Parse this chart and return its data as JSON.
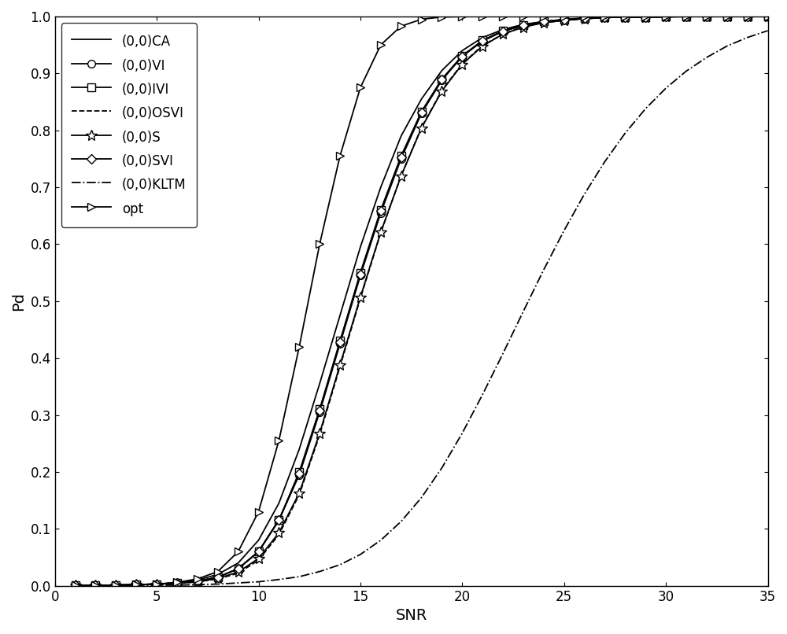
{
  "title": "",
  "xlabel": "SNR",
  "ylabel": "Pd",
  "xlim": [
    0,
    35
  ],
  "ylim": [
    0,
    1
  ],
  "xticks": [
    0,
    5,
    10,
    15,
    20,
    25,
    30,
    35
  ],
  "yticks": [
    0,
    0.1,
    0.2,
    0.3,
    0.4,
    0.5,
    0.6,
    0.7,
    0.8,
    0.9,
    1.0
  ],
  "snr": [
    1,
    2,
    3,
    4,
    5,
    6,
    7,
    8,
    9,
    10,
    11,
    12,
    13,
    14,
    15,
    16,
    17,
    18,
    19,
    20,
    21,
    22,
    23,
    24,
    25,
    26,
    27,
    28,
    29,
    30,
    31,
    32,
    33,
    34,
    35
  ],
  "CA": [
    0.001,
    0.001,
    0.001,
    0.002,
    0.003,
    0.005,
    0.01,
    0.02,
    0.04,
    0.08,
    0.145,
    0.24,
    0.355,
    0.475,
    0.595,
    0.7,
    0.79,
    0.855,
    0.905,
    0.94,
    0.963,
    0.977,
    0.986,
    0.991,
    0.995,
    0.997,
    0.998,
    0.999,
    0.999,
    0.9995,
    0.9997,
    0.9998,
    0.9999,
    0.9999,
    1.0
  ],
  "VI": [
    0.001,
    0.001,
    0.001,
    0.002,
    0.003,
    0.005,
    0.008,
    0.015,
    0.03,
    0.06,
    0.115,
    0.195,
    0.305,
    0.425,
    0.545,
    0.655,
    0.75,
    0.83,
    0.888,
    0.93,
    0.957,
    0.974,
    0.984,
    0.991,
    0.994,
    0.996,
    0.998,
    0.999,
    0.999,
    0.9995,
    0.9997,
    0.9998,
    0.9999,
    1.0,
    1.0
  ],
  "IVI": [
    0.001,
    0.001,
    0.001,
    0.002,
    0.003,
    0.005,
    0.008,
    0.015,
    0.03,
    0.06,
    0.115,
    0.2,
    0.31,
    0.43,
    0.55,
    0.66,
    0.755,
    0.833,
    0.89,
    0.931,
    0.958,
    0.975,
    0.985,
    0.991,
    0.994,
    0.997,
    0.998,
    0.999,
    0.999,
    0.9995,
    0.9997,
    0.9998,
    0.9999,
    1.0,
    1.0
  ],
  "OSVI": [
    0.001,
    0.001,
    0.001,
    0.002,
    0.003,
    0.004,
    0.007,
    0.012,
    0.022,
    0.045,
    0.09,
    0.16,
    0.265,
    0.385,
    0.505,
    0.62,
    0.72,
    0.805,
    0.87,
    0.917,
    0.949,
    0.969,
    0.982,
    0.989,
    0.993,
    0.996,
    0.998,
    0.999,
    0.999,
    0.9995,
    0.9997,
    0.9998,
    0.9999,
    1.0,
    1.0
  ],
  "S": [
    0.001,
    0.001,
    0.001,
    0.002,
    0.003,
    0.004,
    0.007,
    0.013,
    0.024,
    0.048,
    0.093,
    0.163,
    0.268,
    0.388,
    0.507,
    0.621,
    0.72,
    0.804,
    0.869,
    0.916,
    0.948,
    0.969,
    0.981,
    0.989,
    0.993,
    0.996,
    0.998,
    0.999,
    0.999,
    0.9995,
    0.9997,
    0.9998,
    1.0,
    1.0,
    1.0
  ],
  "SVI": [
    0.001,
    0.001,
    0.001,
    0.002,
    0.003,
    0.005,
    0.008,
    0.015,
    0.03,
    0.06,
    0.116,
    0.197,
    0.308,
    0.428,
    0.547,
    0.658,
    0.752,
    0.831,
    0.889,
    0.93,
    0.957,
    0.974,
    0.984,
    0.991,
    0.994,
    0.997,
    0.998,
    0.999,
    0.999,
    0.9995,
    0.9997,
    0.9998,
    0.9999,
    1.0,
    1.0
  ],
  "KLTM": [
    0.001,
    0.001,
    0.001,
    0.001,
    0.001,
    0.001,
    0.002,
    0.003,
    0.005,
    0.007,
    0.011,
    0.016,
    0.025,
    0.037,
    0.055,
    0.08,
    0.113,
    0.155,
    0.207,
    0.268,
    0.336,
    0.408,
    0.482,
    0.555,
    0.624,
    0.688,
    0.745,
    0.795,
    0.838,
    0.874,
    0.904,
    0.928,
    0.948,
    0.963,
    0.975
  ],
  "opt": [
    0.001,
    0.001,
    0.001,
    0.002,
    0.003,
    0.006,
    0.012,
    0.025,
    0.06,
    0.13,
    0.255,
    0.42,
    0.6,
    0.755,
    0.875,
    0.95,
    0.983,
    0.995,
    0.999,
    0.9997,
    0.9999,
    1.0,
    1.0,
    1.0,
    1.0,
    1.0,
    1.0,
    1.0,
    1.0,
    1.0,
    1.0,
    1.0,
    1.0,
    1.0,
    1.0
  ],
  "color": "#000000",
  "linewidth": 1.3,
  "markersize": 7,
  "fontsize_label": 14,
  "fontsize_tick": 12,
  "fontsize_legend": 12
}
